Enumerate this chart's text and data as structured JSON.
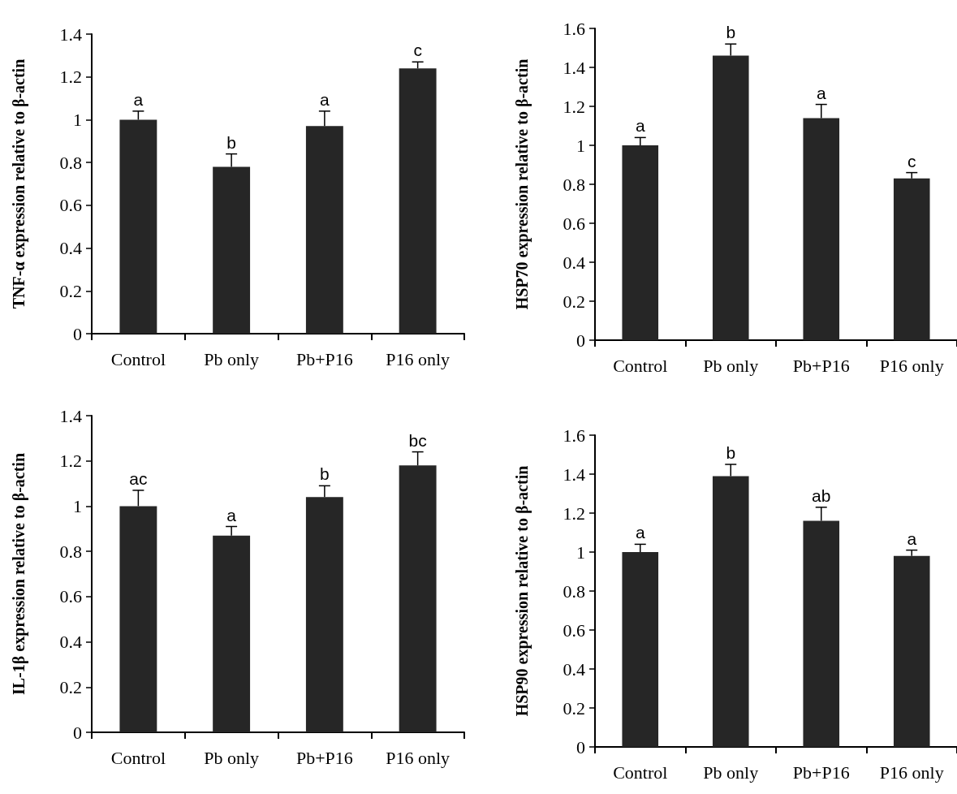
{
  "chart_data": [
    {
      "type": "bar",
      "ylabel": "TNF-α expression relative to β-actin",
      "categories": [
        "Control",
        "Pb only",
        "Pb+P16",
        "P16 only"
      ],
      "values": [
        1.0,
        0.78,
        0.97,
        1.24
      ],
      "color": "#262626",
      "errors": [
        [
          1.0,
          1.04
        ],
        [
          0.78,
          0.84
        ],
        [
          0.97,
          1.04
        ],
        [
          1.24,
          1.27
        ]
      ],
      "ylim": [
        0,
        1.4
      ],
      "yticks": [
        0,
        0.2,
        0.4,
        0.6,
        0.8,
        1,
        1.2,
        1.4
      ],
      "annotations": [
        {
          "text": "a",
          "x": "Control",
          "y": 1.04
        },
        {
          "text": "b",
          "x": "Pb only",
          "y": 0.84
        },
        {
          "text": "a",
          "x": "Pb+P16",
          "y": 1.04
        },
        {
          "text": "c",
          "x": "P16 only",
          "y": 1.27
        }
      ]
    },
    {
      "type": "bar",
      "ylabel": "HSP70 expression relative to β-actin",
      "categories": [
        "Control",
        "Pb only",
        "Pb+P16",
        "P16 only"
      ],
      "values": [
        1.0,
        1.46,
        1.14,
        0.83
      ],
      "color": "#262626",
      "errors": [
        [
          1.0,
          1.04
        ],
        [
          1.46,
          1.52
        ],
        [
          1.14,
          1.21
        ],
        [
          0.83,
          0.86
        ]
      ],
      "ylim": [
        0,
        1.6
      ],
      "yticks": [
        0,
        0.2,
        0.4,
        0.6,
        0.8,
        1,
        1.2,
        1.4,
        1.6
      ],
      "annotations": [
        {
          "text": "a",
          "x": "Control",
          "y": 1.04
        },
        {
          "text": "b",
          "x": "Pb only",
          "y": 1.52
        },
        {
          "text": "a",
          "x": "Pb+P16",
          "y": 1.21
        },
        {
          "text": "c",
          "x": "P16 only",
          "y": 0.86
        }
      ]
    },
    {
      "type": "bar",
      "ylabel": "IL-1β expression relative to β-actin",
      "categories": [
        "Control",
        "Pb only",
        "Pb+P16",
        "P16 only"
      ],
      "values": [
        1.0,
        0.87,
        1.04,
        1.18
      ],
      "color": "#262626",
      "errors": [
        [
          1.0,
          1.07
        ],
        [
          0.87,
          0.91
        ],
        [
          1.04,
          1.09
        ],
        [
          1.18,
          1.24
        ]
      ],
      "ylim": [
        0,
        1.4
      ],
      "yticks": [
        0,
        0.2,
        0.4,
        0.6,
        0.8,
        1,
        1.2,
        1.4
      ],
      "annotations": [
        {
          "text": "ac",
          "x": "Control",
          "y": 1.07
        },
        {
          "text": "a",
          "x": "Pb only",
          "y": 0.91
        },
        {
          "text": "b",
          "x": "Pb+P16",
          "y": 1.09
        },
        {
          "text": "bc",
          "x": "P16 only",
          "y": 1.24
        }
      ]
    },
    {
      "type": "bar",
      "ylabel": "HSP90 expression relative to β-actin",
      "categories": [
        "Control",
        "Pb only",
        "Pb+P16",
        "P16 only"
      ],
      "values": [
        1.0,
        1.39,
        1.16,
        0.98
      ],
      "color": "#262626",
      "errors": [
        [
          1.0,
          1.04
        ],
        [
          1.39,
          1.45
        ],
        [
          1.16,
          1.23
        ],
        [
          0.98,
          1.01
        ]
      ],
      "ylim": [
        0,
        1.6
      ],
      "yticks": [
        0,
        0.2,
        0.4,
        0.6,
        0.8,
        1,
        1.2,
        1.4,
        1.6
      ],
      "annotations": [
        {
          "text": "a",
          "x": "Control",
          "y": 1.04
        },
        {
          "text": "b",
          "x": "Pb only",
          "y": 1.45
        },
        {
          "text": "ab",
          "x": "Pb+P16",
          "y": 1.23
        },
        {
          "text": "a",
          "x": "P16 only",
          "y": 1.01
        }
      ]
    }
  ]
}
